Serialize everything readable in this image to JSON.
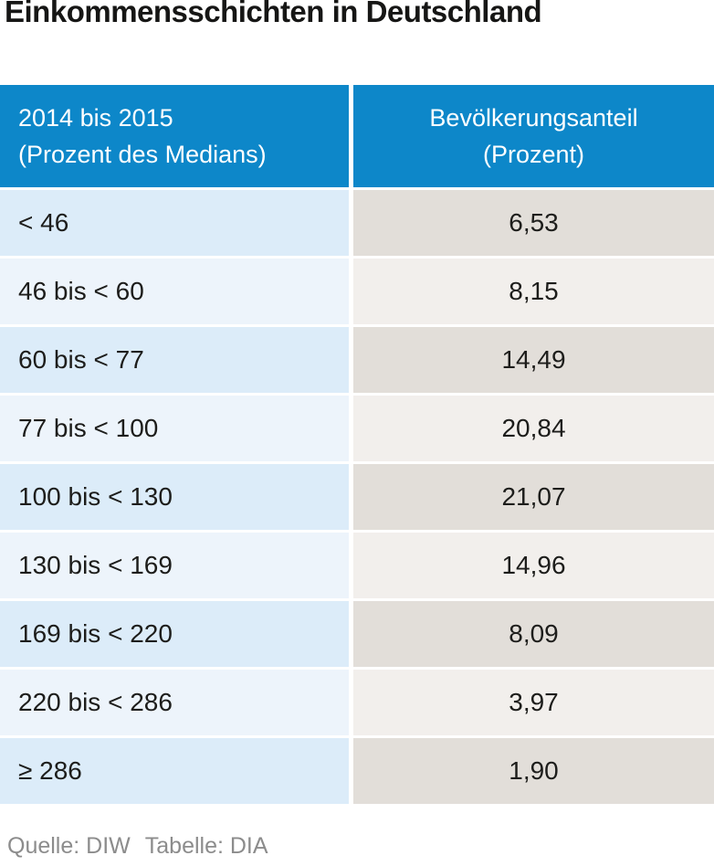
{
  "title": "Einkommensschichten in Deutschland",
  "table": {
    "columns": [
      {
        "line1": "2014 bis 2015",
        "line2": "(Prozent des Medians)"
      },
      {
        "line1": "Bevölkerungsanteil",
        "line2": "(Prozent)"
      }
    ],
    "rows": [
      {
        "range": "< 46",
        "share": "6,53"
      },
      {
        "range": "46 bis < 60",
        "share": "8,15"
      },
      {
        "range": "60 bis < 77",
        "share": "14,49"
      },
      {
        "range": "77 bis < 100",
        "share": "20,84"
      },
      {
        "range": "100 bis < 130",
        "share": "21,07"
      },
      {
        "range": "130 bis < 169",
        "share": "14,96"
      },
      {
        "range": "169 bis < 220",
        "share": "8,09"
      },
      {
        "range": "220 bis < 286",
        "share": "3,97"
      },
      {
        "range": "≥ 286",
        "share": "1,90"
      }
    ]
  },
  "footer": {
    "source": "Quelle: DIW",
    "table_credit": "Tabelle: DIA"
  },
  "colors": {
    "header_bg": "#0d87c9",
    "header_text": "#ffffff",
    "row_left_odd": "#dcecf9",
    "row_left_even": "#edf4fb",
    "row_right_odd": "#e2ded9",
    "row_right_even": "#f2efec",
    "body_text": "#1d1d1b",
    "footer_text": "#8c8c8c"
  },
  "chart_data": {
    "type": "table",
    "title": "Einkommensschichten in Deutschland",
    "columns": [
      "2014 bis 2015 (Prozent des Medians)",
      "Bevölkerungsanteil (Prozent)"
    ],
    "categories": [
      "< 46",
      "46 bis < 60",
      "60 bis < 77",
      "77 bis < 100",
      "100 bis < 130",
      "130 bis < 169",
      "169 bis < 220",
      "220 bis < 286",
      "≥ 286"
    ],
    "values": [
      6.53,
      8.15,
      14.49,
      20.84,
      21.07,
      14.96,
      8.09,
      3.97,
      1.9
    ],
    "unit": "Prozent",
    "source": "Quelle: DIW Tabelle: DIA"
  }
}
